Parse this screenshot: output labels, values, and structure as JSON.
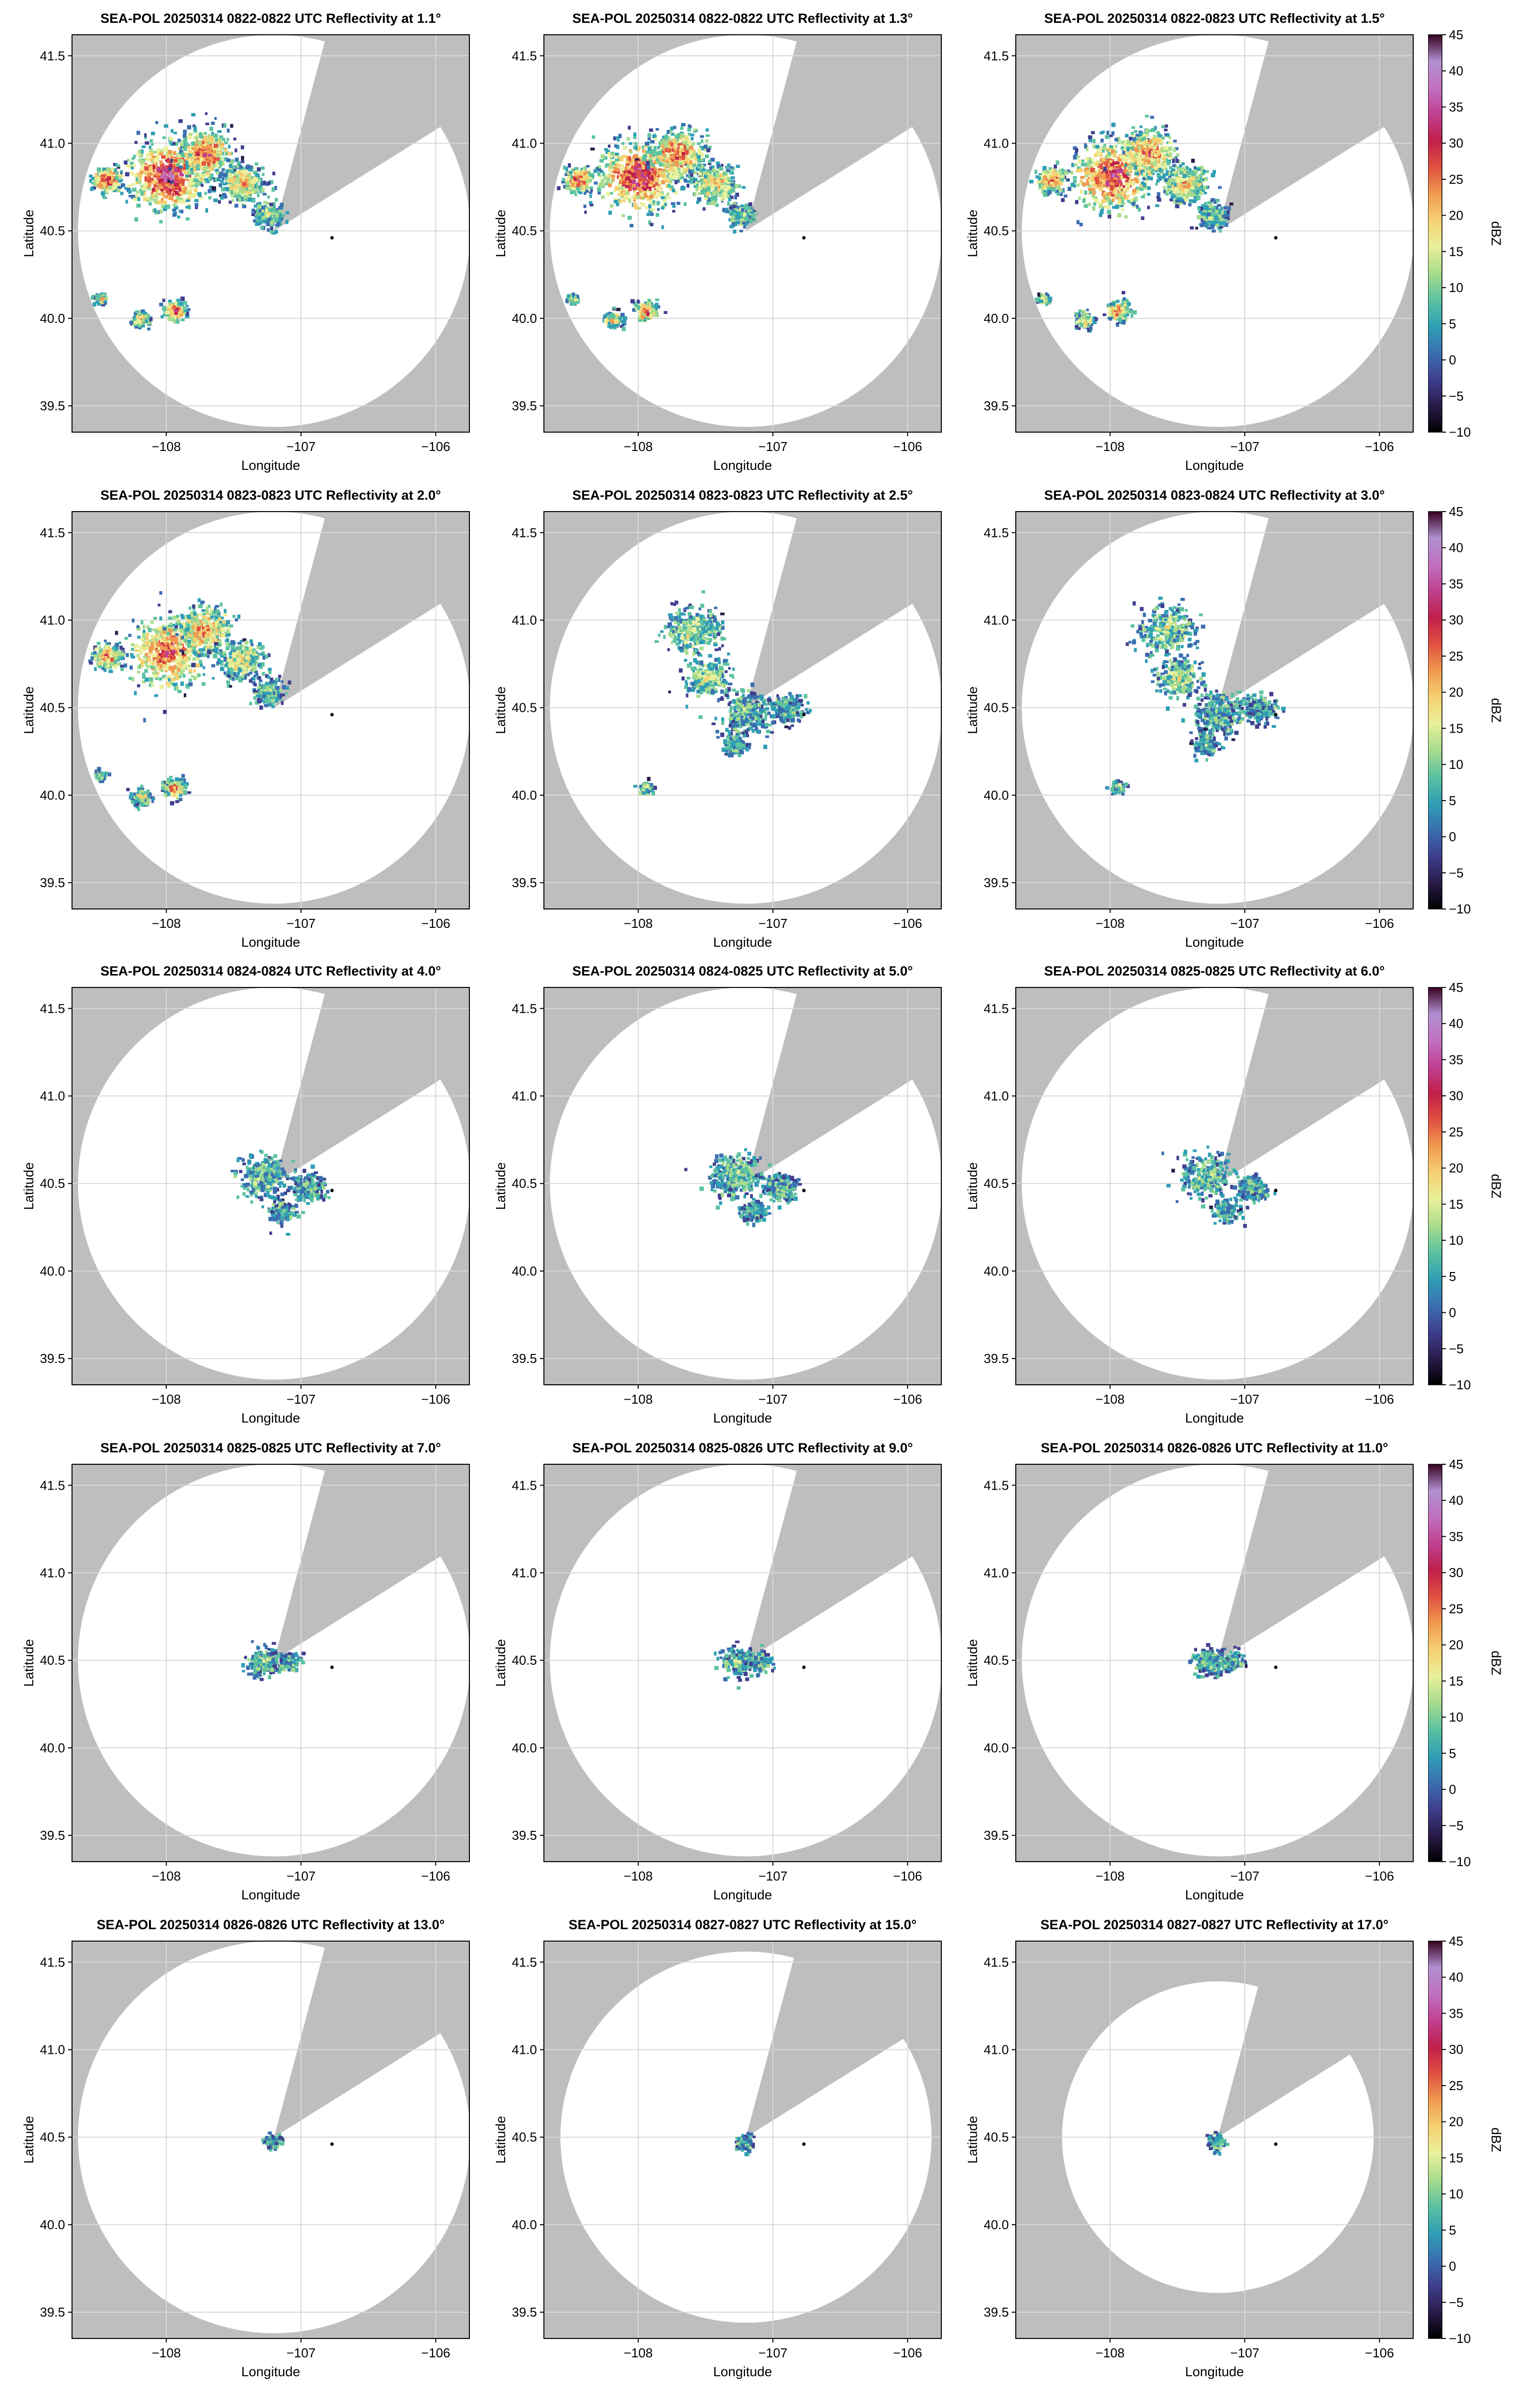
{
  "chart_data": {
    "type": "heatmap",
    "xlabel": "Longitude",
    "ylabel": "Latitude",
    "xlim": [
      -108.7,
      -105.75
    ],
    "ylim": [
      39.35,
      41.62
    ],
    "xticks": [
      -108,
      -107,
      -106
    ],
    "xtick_labels": [
      "−108",
      "−107",
      "−106"
    ],
    "yticks": [
      39.5,
      40.0,
      40.5,
      41.0,
      41.5
    ],
    "ytick_labels": [
      "39.5",
      "40.0",
      "40.5",
      "41.0",
      "41.5"
    ],
    "grid": true,
    "radar_site": {
      "lon": -107.2,
      "lat": 40.5
    },
    "marker_point": {
      "lon": -106.77,
      "lat": 40.46
    },
    "colorbar": {
      "label": "dBZ",
      "range": [
        -10,
        45
      ],
      "ticks": [
        45,
        40,
        35,
        30,
        25,
        20,
        15,
        10,
        5,
        0,
        -5,
        -10
      ],
      "tick_labels": [
        "45",
        "40",
        "35",
        "30",
        "25",
        "20",
        "15",
        "10",
        "5",
        "0",
        "−5",
        "−10"
      ],
      "colors": [
        "#000000",
        "#2a1b4a",
        "#3f3f8f",
        "#3a6fb0",
        "#2f9fb4",
        "#5cc2a0",
        "#a8dc8c",
        "#e9f09a",
        "#f6d070",
        "#f09a50",
        "#e05040",
        "#c0204a",
        "#c04090",
        "#c070c0",
        "#b090d0",
        "#380020"
      ]
    },
    "panels": [
      {
        "title": "SEA-POL 20250314 0822-0822 UTC Reflectivity at 1.1°",
        "elevation": 1.1,
        "radius_deg_lat": 1.12,
        "extent": "wide",
        "intensity": 1.0
      },
      {
        "title": "SEA-POL 20250314 0822-0822 UTC Reflectivity at 1.3°",
        "elevation": 1.3,
        "radius_deg_lat": 1.12,
        "extent": "wide",
        "intensity": 0.95
      },
      {
        "title": "SEA-POL 20250314 0822-0823 UTC Reflectivity at 1.5°",
        "elevation": 1.5,
        "radius_deg_lat": 1.12,
        "extent": "wide",
        "intensity": 0.9
      },
      {
        "title": "SEA-POL 20250314 0823-0823 UTC Reflectivity at 2.0°",
        "elevation": 2.0,
        "radius_deg_lat": 1.12,
        "extent": "wide",
        "intensity": 0.8
      },
      {
        "title": "SEA-POL 20250314 0823-0823 UTC Reflectivity at 2.5°",
        "elevation": 2.5,
        "radius_deg_lat": 1.12,
        "extent": "medium",
        "intensity": 0.55
      },
      {
        "title": "SEA-POL 20250314 0823-0824 UTC Reflectivity at 3.0°",
        "elevation": 3.0,
        "radius_deg_lat": 1.12,
        "extent": "medium",
        "intensity": 0.5
      },
      {
        "title": "SEA-POL 20250314 0824-0824 UTC Reflectivity at 4.0°",
        "elevation": 4.0,
        "radius_deg_lat": 1.12,
        "extent": "near",
        "intensity": 0.45
      },
      {
        "title": "SEA-POL 20250314 0824-0825 UTC Reflectivity at 5.0°",
        "elevation": 5.0,
        "radius_deg_lat": 1.12,
        "extent": "near",
        "intensity": 0.45
      },
      {
        "title": "SEA-POL 20250314 0825-0825 UTC Reflectivity at 6.0°",
        "elevation": 6.0,
        "radius_deg_lat": 1.12,
        "extent": "near",
        "intensity": 0.4
      },
      {
        "title": "SEA-POL 20250314 0825-0825 UTC Reflectivity at 7.0°",
        "elevation": 7.0,
        "radius_deg_lat": 1.12,
        "extent": "close",
        "intensity": 0.4
      },
      {
        "title": "SEA-POL 20250314 0825-0826 UTC Reflectivity at 9.0°",
        "elevation": 9.0,
        "radius_deg_lat": 1.12,
        "extent": "close",
        "intensity": 0.35
      },
      {
        "title": "SEA-POL 20250314 0826-0826 UTC Reflectivity at 11.0°",
        "elevation": 11.0,
        "radius_deg_lat": 1.12,
        "extent": "close",
        "intensity": 0.35
      },
      {
        "title": "SEA-POL 20250314 0826-0826 UTC Reflectivity at 13.0°",
        "elevation": 13.0,
        "radius_deg_lat": 1.12,
        "extent": "tiny",
        "intensity": 0.3
      },
      {
        "title": "SEA-POL 20250314 0827-0827 UTC Reflectivity at 15.0°",
        "elevation": 15.0,
        "radius_deg_lat": 1.06,
        "extent": "tiny",
        "intensity": 0.3
      },
      {
        "title": "SEA-POL 20250314 0827-0827 UTC Reflectivity at 17.0°",
        "elevation": 17.0,
        "radius_deg_lat": 0.89,
        "extent": "tiny",
        "intensity": 0.3
      }
    ]
  }
}
